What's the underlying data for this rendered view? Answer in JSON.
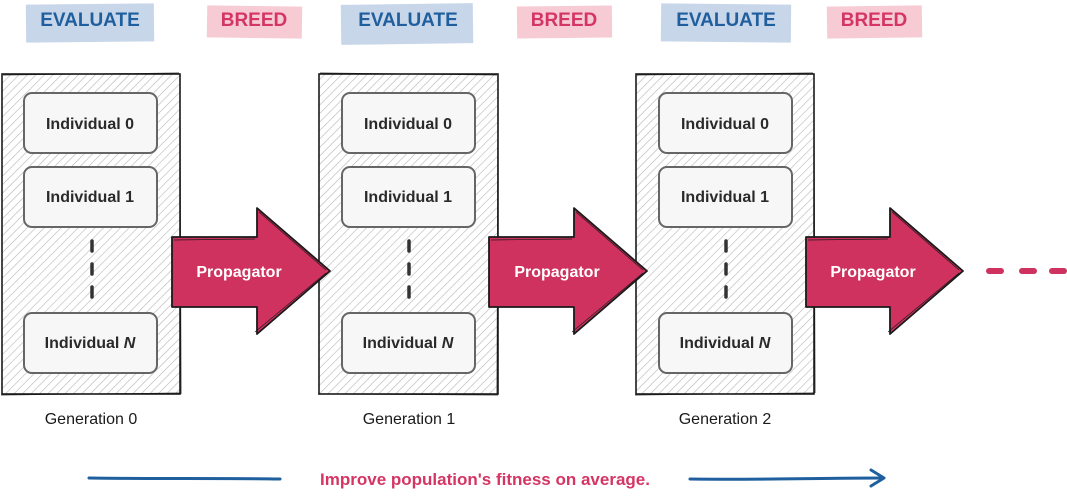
{
  "labels": {
    "evaluate": "EVALUATE",
    "breed": "BREED"
  },
  "generations": [
    {
      "name": "Generation 0",
      "individuals": [
        {
          "text": "Individual 0"
        },
        {
          "text": "Individual 1"
        },
        {
          "text": "Individual ",
          "suffix": "N"
        }
      ]
    },
    {
      "name": "Generation 1",
      "individuals": [
        {
          "text": "Individual 0"
        },
        {
          "text": "Individual 1"
        },
        {
          "text": "Individual ",
          "suffix": "N"
        }
      ]
    },
    {
      "name": "Generation 2",
      "individuals": [
        {
          "text": "Individual 0"
        },
        {
          "text": "Individual 1"
        },
        {
          "text": "Individual ",
          "suffix": "N"
        }
      ]
    }
  ],
  "propagator": "Propagator",
  "caption": "Improve population's fitness on average.",
  "colors": {
    "evaluate_bg": "#c8d6ea",
    "evaluate_text": "#1f5f9e",
    "breed_bg": "#f7cbd3",
    "breed_text": "#d43564",
    "arrow": "#d0325f",
    "caption_arrow": "#1f5f9e",
    "caption_text": "#d43564"
  }
}
